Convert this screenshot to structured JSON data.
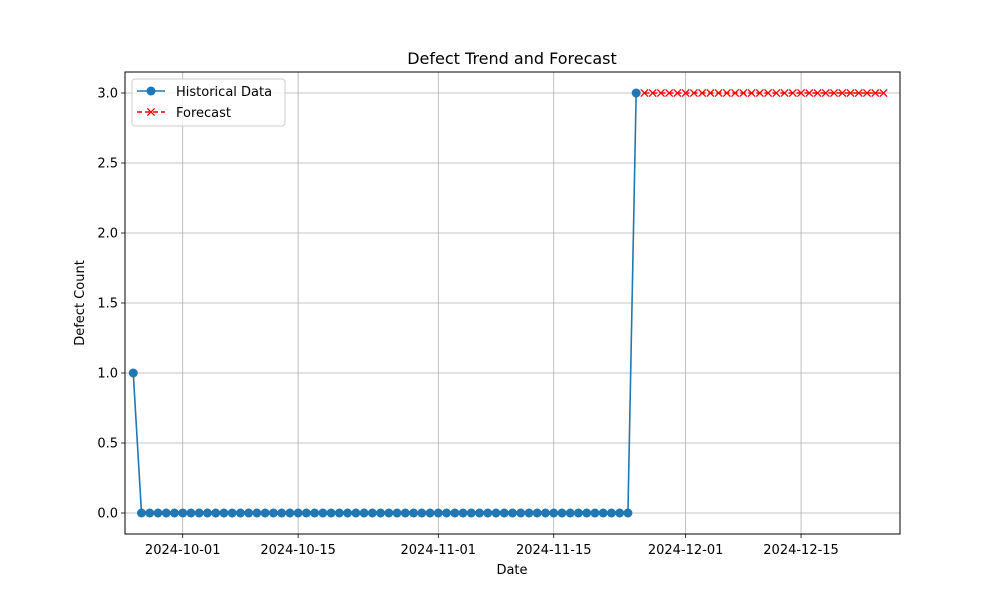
{
  "chart_data": {
    "type": "line",
    "title": "Defect Trend and Forecast",
    "xlabel": "Date",
    "ylabel": "Defect Count",
    "x_ticks": [
      "2024-10-01",
      "2024-10-15",
      "2024-11-01",
      "2024-11-15",
      "2024-12-01",
      "2024-12-15"
    ],
    "y_ticks": [
      "0.0",
      "0.5",
      "1.0",
      "1.5",
      "2.0",
      "2.5",
      "3.0"
    ],
    "xlim": [
      "2024-09-24",
      "2024-12-27"
    ],
    "ylim": [
      -0.15,
      3.15
    ],
    "grid": true,
    "legend_position": "top-left",
    "series": [
      {
        "name": "Historical Data",
        "color": "#1f77b4",
        "marker": "circle",
        "line_style": "solid",
        "x": [
          "2024-09-25",
          "2024-09-26",
          "2024-09-27",
          "2024-09-28",
          "2024-09-29",
          "2024-09-30",
          "2024-10-01",
          "2024-10-02",
          "2024-10-03",
          "2024-10-04",
          "2024-10-05",
          "2024-10-06",
          "2024-10-07",
          "2024-10-08",
          "2024-10-09",
          "2024-10-10",
          "2024-10-11",
          "2024-10-12",
          "2024-10-13",
          "2024-10-14",
          "2024-10-15",
          "2024-10-16",
          "2024-10-17",
          "2024-10-18",
          "2024-10-19",
          "2024-10-20",
          "2024-10-21",
          "2024-10-22",
          "2024-10-23",
          "2024-10-24",
          "2024-10-25",
          "2024-10-26",
          "2024-10-27",
          "2024-10-28",
          "2024-10-29",
          "2024-10-30",
          "2024-10-31",
          "2024-11-01",
          "2024-11-02",
          "2024-11-03",
          "2024-11-04",
          "2024-11-05",
          "2024-11-06",
          "2024-11-07",
          "2024-11-08",
          "2024-11-09",
          "2024-11-10",
          "2024-11-11",
          "2024-11-12",
          "2024-11-13",
          "2024-11-14",
          "2024-11-15",
          "2024-11-16",
          "2024-11-17",
          "2024-11-18",
          "2024-11-19",
          "2024-11-20",
          "2024-11-21",
          "2024-11-22",
          "2024-11-23",
          "2024-11-24",
          "2024-11-25"
        ],
        "y": [
          1,
          0,
          0,
          0,
          0,
          0,
          0,
          0,
          0,
          0,
          0,
          0,
          0,
          0,
          0,
          0,
          0,
          0,
          0,
          0,
          0,
          0,
          0,
          0,
          0,
          0,
          0,
          0,
          0,
          0,
          0,
          0,
          0,
          0,
          0,
          0,
          0,
          0,
          0,
          0,
          0,
          0,
          0,
          0,
          0,
          0,
          0,
          0,
          0,
          0,
          0,
          0,
          0,
          0,
          0,
          0,
          0,
          0,
          0,
          0,
          0,
          3
        ]
      },
      {
        "name": "Forecast",
        "color": "#ff0000",
        "marker": "x",
        "line_style": "dashed",
        "x": [
          "2024-11-26",
          "2024-11-27",
          "2024-11-28",
          "2024-11-29",
          "2024-11-30",
          "2024-12-01",
          "2024-12-02",
          "2024-12-03",
          "2024-12-04",
          "2024-12-05",
          "2024-12-06",
          "2024-12-07",
          "2024-12-08",
          "2024-12-09",
          "2024-12-10",
          "2024-12-11",
          "2024-12-12",
          "2024-12-13",
          "2024-12-14",
          "2024-12-15",
          "2024-12-16",
          "2024-12-17",
          "2024-12-18",
          "2024-12-19",
          "2024-12-20",
          "2024-12-21",
          "2024-12-22",
          "2024-12-23",
          "2024-12-24",
          "2024-12-25"
        ],
        "y": [
          3,
          3,
          3,
          3,
          3,
          3,
          3,
          3,
          3,
          3,
          3,
          3,
          3,
          3,
          3,
          3,
          3,
          3,
          3,
          3,
          3,
          3,
          3,
          3,
          3,
          3,
          3,
          3,
          3,
          3
        ]
      }
    ]
  }
}
